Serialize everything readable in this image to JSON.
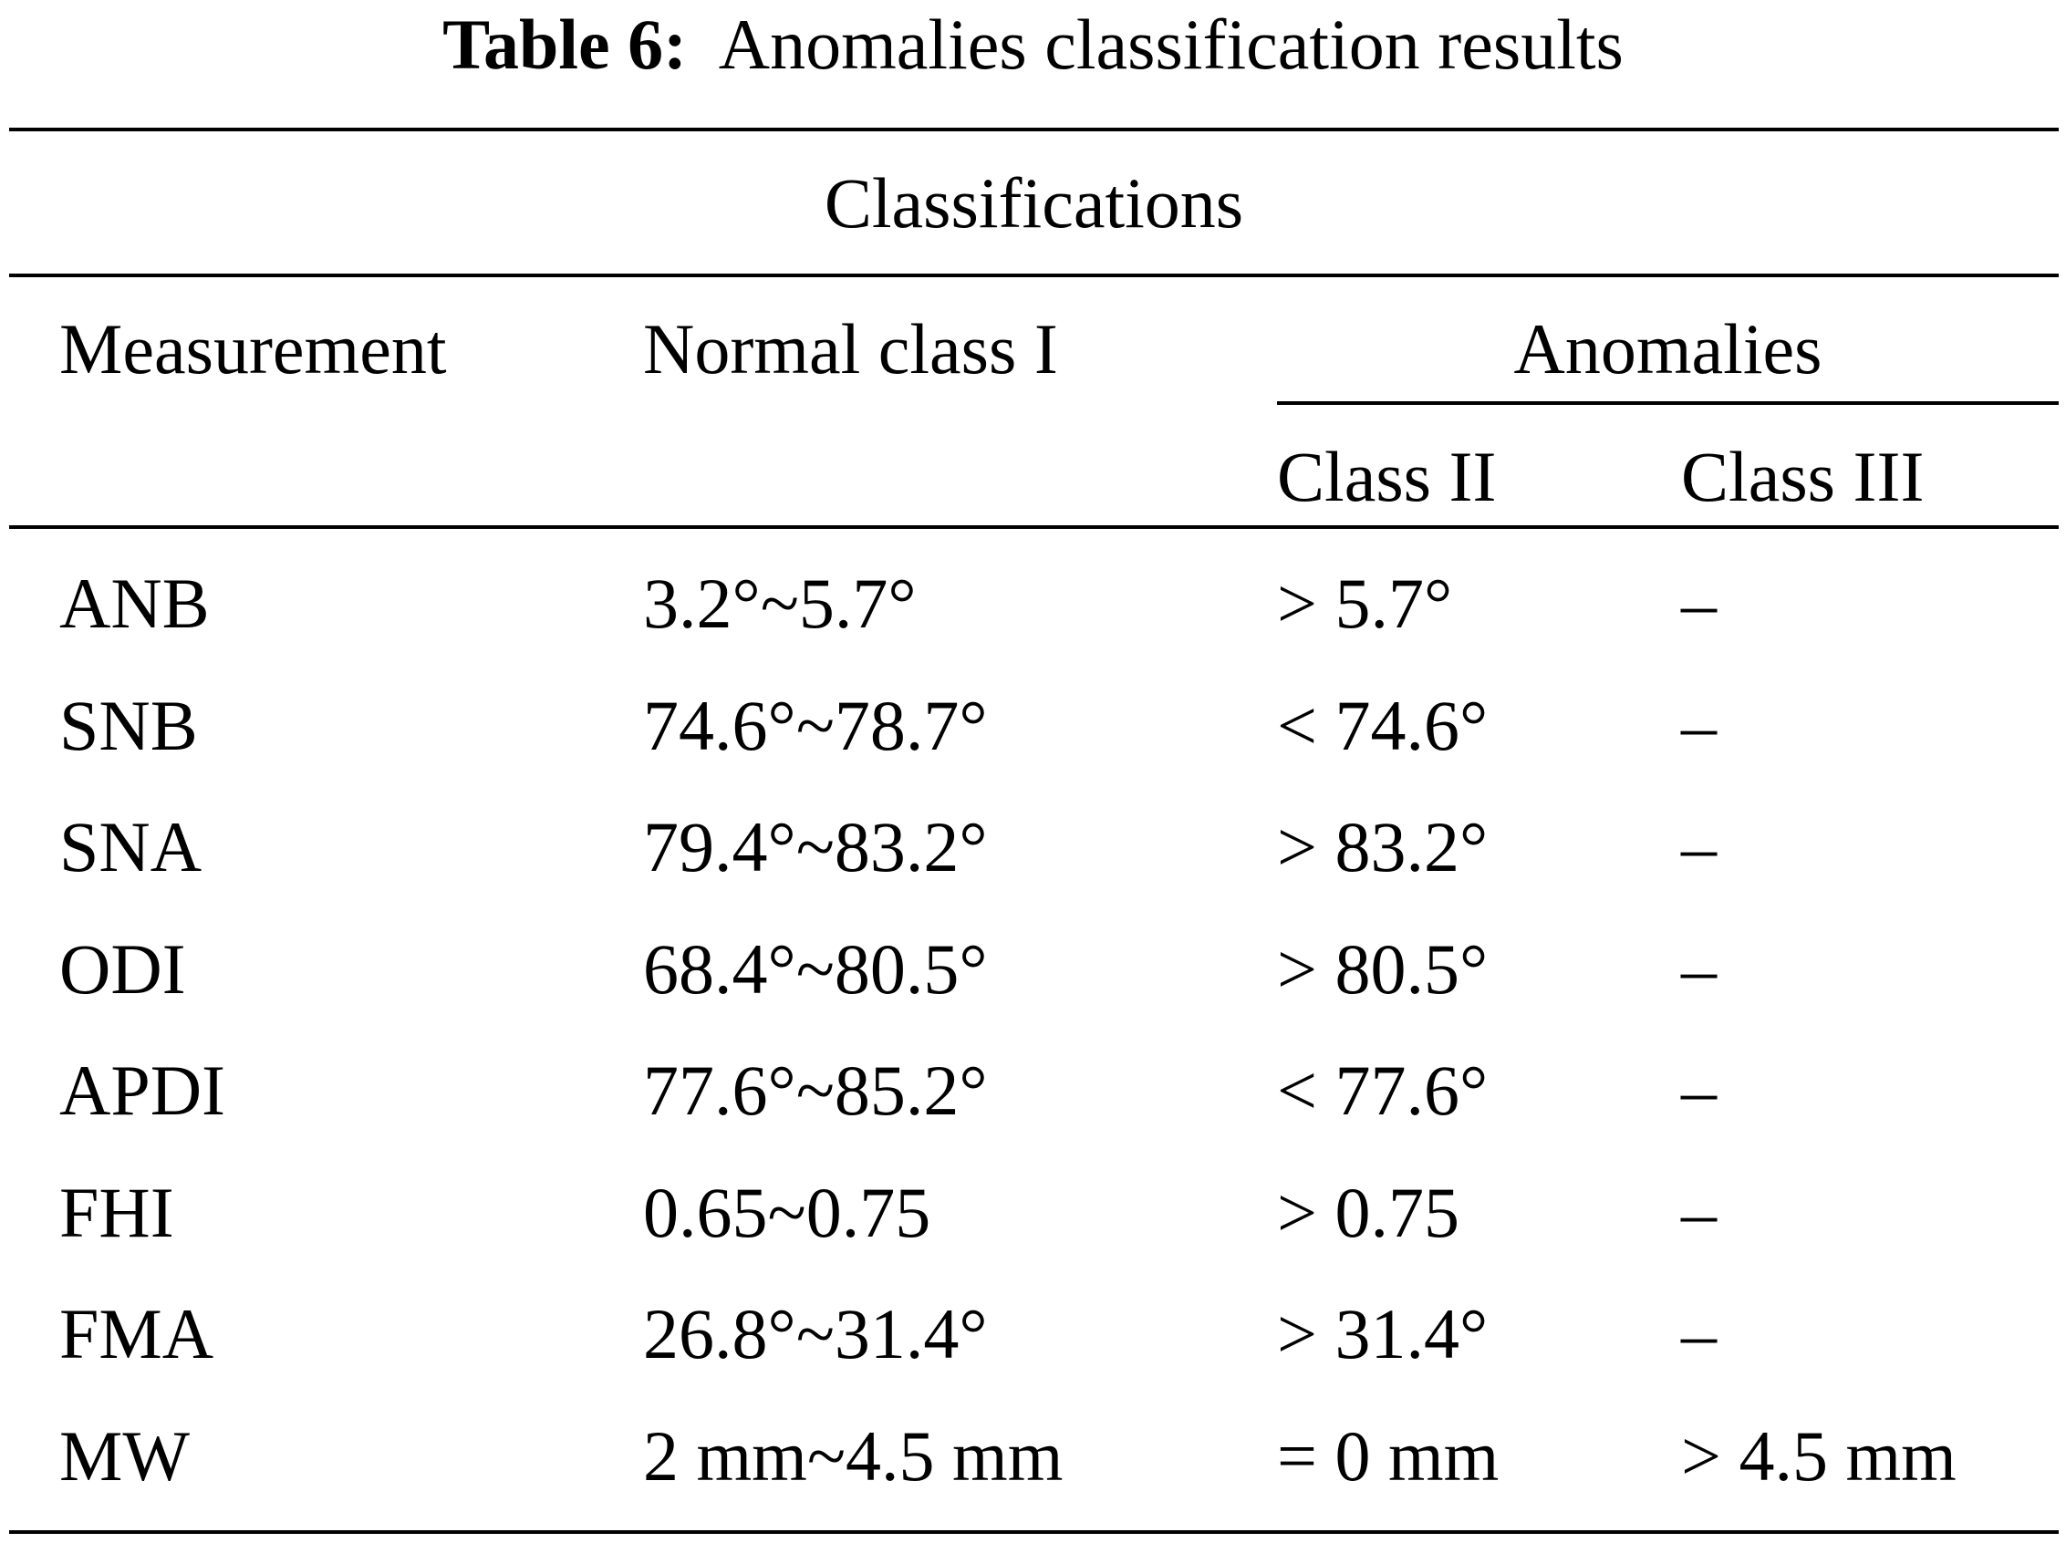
{
  "caption": {
    "label": "Table 6:",
    "text": "Anomalies classification results"
  },
  "table": {
    "group_header": "Classifications",
    "columns": {
      "measurement": "Measurement",
      "normal": "Normal class I",
      "anomalies": "Anomalies",
      "class2": "Class II",
      "class3": "Class III"
    },
    "rows": [
      {
        "measurement": "ANB",
        "normal": "3.2°~5.7°",
        "class2": "> 5.7°",
        "class3": "–"
      },
      {
        "measurement": "SNB",
        "normal": "74.6°~78.7°",
        "class2": "< 74.6°",
        "class3": "–"
      },
      {
        "measurement": "SNA",
        "normal": "79.4°~83.2°",
        "class2": "> 83.2°",
        "class3": "–"
      },
      {
        "measurement": "ODI",
        "normal": "68.4°~80.5°",
        "class2": "> 80.5°",
        "class3": "–"
      },
      {
        "measurement": "APDI",
        "normal": "77.6°~85.2°",
        "class2": "< 77.6°",
        "class3": "–"
      },
      {
        "measurement": "FHI",
        "normal": "0.65~0.75",
        "class2": "> 0.75",
        "class3": "–"
      },
      {
        "measurement": "FMA",
        "normal": "26.8°~31.4°",
        "class2": "> 31.4°",
        "class3": "–"
      },
      {
        "measurement": "MW",
        "normal": "2 mm~4.5 mm",
        "class2": "= 0 mm",
        "class3": "> 4.5 mm"
      }
    ]
  }
}
